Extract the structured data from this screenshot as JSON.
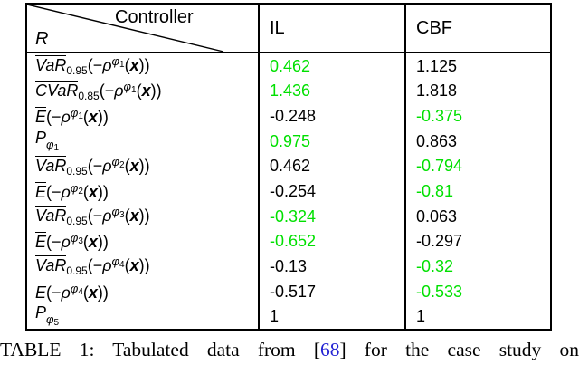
{
  "colors": {
    "green": "#00e000",
    "citation_blue": "#2323d3",
    "border": "#000000"
  },
  "table": {
    "header": {
      "diag_top": "Controller",
      "diag_bottom": "R",
      "col_il": "IL",
      "col_cbf": "CBF"
    },
    "math": {
      "p": "P",
      "phi": "φ",
      "rho": "ρ",
      "x": "x",
      "open": "(−",
      "x_open": "(",
      "close": "))"
    },
    "rows": [
      {
        "kind": "risk",
        "name": "VaR",
        "alpha": "0.95",
        "phi": "1",
        "il": "0.462",
        "il_green": true,
        "cbf": "1.125",
        "cbf_green": false
      },
      {
        "kind": "risk",
        "name": "CVaR",
        "alpha": "0.85",
        "phi": "1",
        "il": "1.436",
        "il_green": true,
        "cbf": "1.818",
        "cbf_green": false
      },
      {
        "kind": "risk",
        "name": "E",
        "alpha": "",
        "phi": "1",
        "il": "-0.248",
        "il_green": false,
        "cbf": "-0.375",
        "cbf_green": true
      },
      {
        "kind": "prob",
        "phi": "1",
        "il": "0.975",
        "il_green": true,
        "cbf": "0.863",
        "cbf_green": false
      },
      {
        "kind": "risk",
        "name": "VaR",
        "alpha": "0.95",
        "phi": "2",
        "il": "0.462",
        "il_green": false,
        "cbf": "-0.794",
        "cbf_green": true
      },
      {
        "kind": "risk",
        "name": "E",
        "alpha": "",
        "phi": "2",
        "il": "-0.254",
        "il_green": false,
        "cbf": "-0.81",
        "cbf_green": true
      },
      {
        "kind": "risk",
        "name": "VaR",
        "alpha": "0.95",
        "phi": "3",
        "il": "-0.324",
        "il_green": true,
        "cbf": "0.063",
        "cbf_green": false
      },
      {
        "kind": "risk",
        "name": "E",
        "alpha": "",
        "phi": "3",
        "il": "-0.652",
        "il_green": true,
        "cbf": "-0.297",
        "cbf_green": false
      },
      {
        "kind": "risk",
        "name": "VaR",
        "alpha": "0.95",
        "phi": "4",
        "il": "-0.13",
        "il_green": false,
        "cbf": "-0.32",
        "cbf_green": true
      },
      {
        "kind": "risk",
        "name": "E",
        "alpha": "",
        "phi": "4",
        "il": "-0.517",
        "il_green": false,
        "cbf": "-0.533",
        "cbf_green": true
      },
      {
        "kind": "prob",
        "phi": "5",
        "il": "1",
        "il_green": false,
        "cbf": "1",
        "cbf_green": false
      }
    ]
  },
  "caption": {
    "prefix": "TABLE 1: Tabulated data from [",
    "ref": "68",
    "suffix": "] for the case study on"
  }
}
